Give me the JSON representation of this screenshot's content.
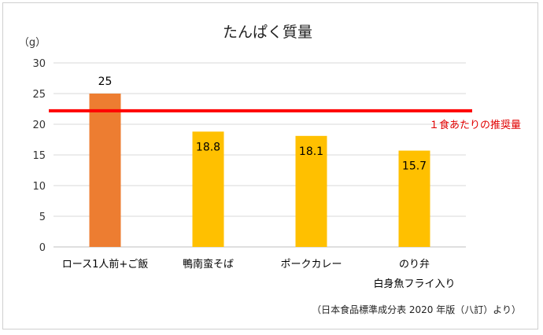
{
  "chart_data": {
    "type": "bar",
    "title": "たんぱく質量",
    "ylabel": "（g）",
    "ylim": [
      0,
      30
    ],
    "yticks": [
      0,
      5,
      10,
      15,
      20,
      25,
      30
    ],
    "grid": true,
    "categories": [
      "ロース1人前+ご飯",
      "鴨南蛮そば",
      "ポークカレー",
      "のり弁"
    ],
    "category_sublabels": [
      "",
      "",
      "",
      "白身魚フライ入り"
    ],
    "values": [
      25,
      18.8,
      18.1,
      15.7
    ],
    "data_labels": [
      "25",
      "18.8",
      "18.1",
      "15.7"
    ],
    "bar_colors": [
      "#ed7d31",
      "#ffc000",
      "#ffc000",
      "#ffc000"
    ],
    "reference_line": {
      "value": 22.2,
      "label": "１食あたりの推奨量",
      "color": "#ff0000"
    },
    "source_note": "（日本食品標準成分表 2020 年版（八訂）より）"
  }
}
